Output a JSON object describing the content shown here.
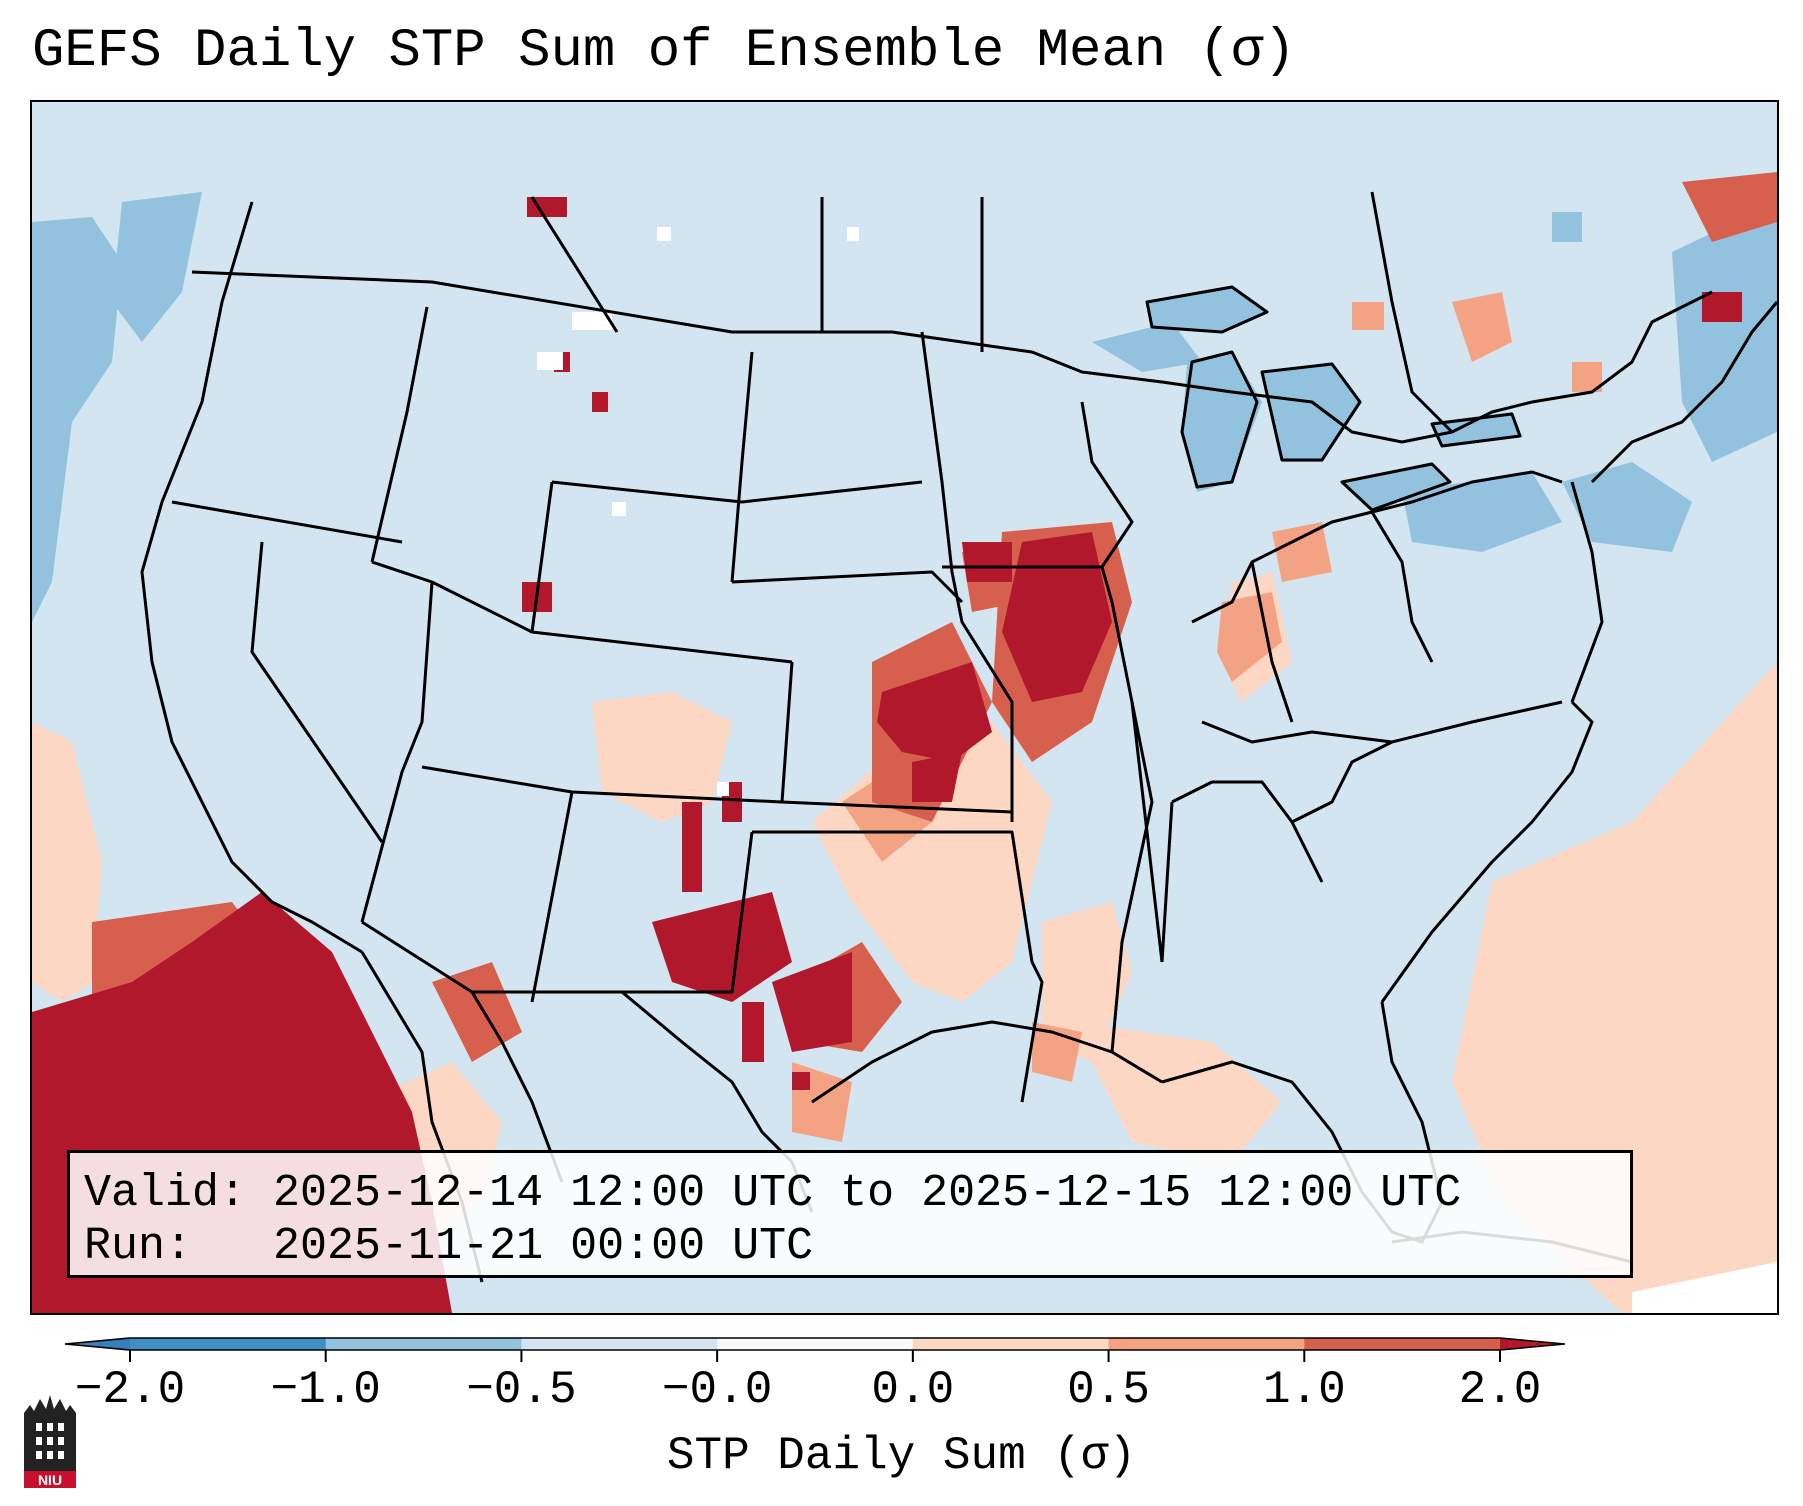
{
  "title": "GEFS Daily STP Sum of Ensemble Mean (σ)",
  "info": {
    "valid_label": "Valid:",
    "valid_range": "2025-12-14 12:00 UTC to 2025-12-15 12:00 UTC",
    "run_label": "Run:",
    "run_time": "2025-11-21 00:00 UTC"
  },
  "colorbar": {
    "label": "STP Daily Sum (σ)",
    "ticks": [
      "−2.0",
      "−1.0",
      "−0.5",
      "−0.0",
      "0.0",
      "0.5",
      "1.0",
      "2.0"
    ],
    "bins": [
      {
        "range": "< -2.0",
        "color": "#3a7ebc"
      },
      {
        "range": "-2.0 to -1.0",
        "color": "#3f8fc4"
      },
      {
        "range": "-1.0 to -0.5",
        "color": "#92c2de"
      },
      {
        "range": "-0.5 to -0.0",
        "color": "#d2e5f0"
      },
      {
        "range": "-0.0 to 0.0",
        "color": "#f8f8f8"
      },
      {
        "range": "0.0 to 0.5",
        "color": "#fbd7c4"
      },
      {
        "range": "0.5 to 1.0",
        "color": "#f3a383"
      },
      {
        "range": "1.0 to 2.0",
        "color": "#d6604d"
      },
      {
        "range": "> 2.0",
        "color": "#b2182b"
      }
    ]
  },
  "logo": {
    "text": "NIU",
    "color": "#c8102e"
  },
  "map": {
    "projection": "Lambert Conformal, CONUS",
    "background_color": "#d2e5f0",
    "features": [
      "US state boundaries",
      "Canada province boundaries",
      "Mexico border",
      "coastlines",
      "Great Lakes"
    ]
  }
}
